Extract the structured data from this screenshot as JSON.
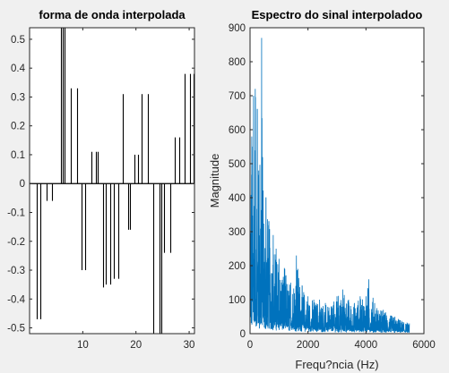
{
  "chart_data": [
    {
      "type": "bar",
      "title": "forma de onda interpolada",
      "xlabel": "",
      "ylabel": "",
      "xlim": [
        0,
        31
      ],
      "ylim": [
        -0.52,
        0.54
      ],
      "xticks": [
        10,
        20,
        30
      ],
      "yticks": [
        -0.5,
        -0.4,
        -0.3,
        -0.2,
        -0.1,
        0,
        0.1,
        0.2,
        0.3,
        0.4,
        0.5
      ],
      "ytick_labels": [
        "-0.5",
        "-0.4",
        "-0.3",
        "-0.2",
        "-0.1",
        "0",
        "0.1",
        "0.2",
        "0.3",
        "0.4",
        "0.5"
      ],
      "xtick_labels": [
        "10",
        "20",
        "30"
      ],
      "bar_color": "#000000",
      "lines": [
        {
          "x": 1.3,
          "y": -0.47
        },
        {
          "x": 2.0,
          "y": -0.47
        },
        {
          "x": 3.2,
          "y": -0.06
        },
        {
          "x": 4.2,
          "y": -0.06
        },
        {
          "x": 5.9,
          "y": 0.54
        },
        {
          "x": 6.3,
          "y": 0.54
        },
        {
          "x": 6.6,
          "y": 0.54
        },
        {
          "x": 7.8,
          "y": 0.33
        },
        {
          "x": 8.9,
          "y": 0.33
        },
        {
          "x": 9.8,
          "y": -0.3
        },
        {
          "x": 10.5,
          "y": -0.3
        },
        {
          "x": 11.7,
          "y": 0.11
        },
        {
          "x": 12.5,
          "y": 0.11
        },
        {
          "x": 12.8,
          "y": 0.11
        },
        {
          "x": 13.8,
          "y": -0.36
        },
        {
          "x": 14.3,
          "y": -0.35
        },
        {
          "x": 15.1,
          "y": -0.35
        },
        {
          "x": 15.9,
          "y": -0.33
        },
        {
          "x": 16.6,
          "y": -0.33
        },
        {
          "x": 17.6,
          "y": 0.31
        },
        {
          "x": 18.6,
          "y": -0.16
        },
        {
          "x": 18.9,
          "y": -0.16
        },
        {
          "x": 19.7,
          "y": 0.1
        },
        {
          "x": 20.4,
          "y": 0.1
        },
        {
          "x": 21.1,
          "y": 0.31
        },
        {
          "x": 22.2,
          "y": 0.31
        },
        {
          "x": 23.2,
          "y": -0.52
        },
        {
          "x": 24.4,
          "y": -0.52
        },
        {
          "x": 24.7,
          "y": -0.52
        },
        {
          "x": 25.3,
          "y": -0.24
        },
        {
          "x": 26.4,
          "y": -0.24
        },
        {
          "x": 27.3,
          "y": 0.16
        },
        {
          "x": 28.1,
          "y": 0.16
        },
        {
          "x": 29.2,
          "y": 0.38
        },
        {
          "x": 30.1,
          "y": 0.38
        },
        {
          "x": 30.8,
          "y": 0.38
        }
      ]
    },
    {
      "type": "line",
      "title": "Espectro do sinal interpoladoo",
      "xlabel": "Frequ?ncia (Hz)",
      "ylabel": "Magnitude",
      "xlim": [
        0,
        6000
      ],
      "ylim": [
        0,
        900
      ],
      "xticks": [
        0,
        2000,
        4000,
        6000
      ],
      "yticks": [
        0,
        100,
        200,
        300,
        400,
        500,
        600,
        700,
        800,
        900
      ],
      "xtick_labels": [
        "0",
        "2000",
        "4000",
        "6000"
      ],
      "ytick_labels": [
        "0",
        "100",
        "200",
        "300",
        "400",
        "500",
        "600",
        "700",
        "800",
        "900"
      ],
      "line_color": "#0072bd",
      "x_max_data": 5500,
      "envelope": [
        [
          0,
          600
        ],
        [
          60,
          580
        ],
        [
          120,
          700
        ],
        [
          180,
          720
        ],
        [
          250,
          660
        ],
        [
          300,
          480
        ],
        [
          400,
          870
        ],
        [
          450,
          420
        ],
        [
          550,
          400
        ],
        [
          650,
          330
        ],
        [
          800,
          290
        ],
        [
          900,
          250
        ],
        [
          1000,
          220
        ],
        [
          1200,
          190
        ],
        [
          1400,
          150
        ],
        [
          1600,
          230
        ],
        [
          1800,
          140
        ],
        [
          2000,
          110
        ],
        [
          2200,
          100
        ],
        [
          2400,
          100
        ],
        [
          2600,
          90
        ],
        [
          2800,
          80
        ],
        [
          3000,
          110
        ],
        [
          3200,
          130
        ],
        [
          3400,
          100
        ],
        [
          3600,
          90
        ],
        [
          3800,
          110
        ],
        [
          4000,
          110
        ],
        [
          4100,
          160
        ],
        [
          4300,
          90
        ],
        [
          4600,
          70
        ],
        [
          5000,
          50
        ],
        [
          5500,
          30
        ]
      ],
      "floor": [
        [
          0,
          40
        ],
        [
          500,
          35
        ],
        [
          1000,
          25
        ],
        [
          2000,
          15
        ],
        [
          3000,
          12
        ],
        [
          4000,
          10
        ],
        [
          5500,
          5
        ]
      ]
    }
  ]
}
